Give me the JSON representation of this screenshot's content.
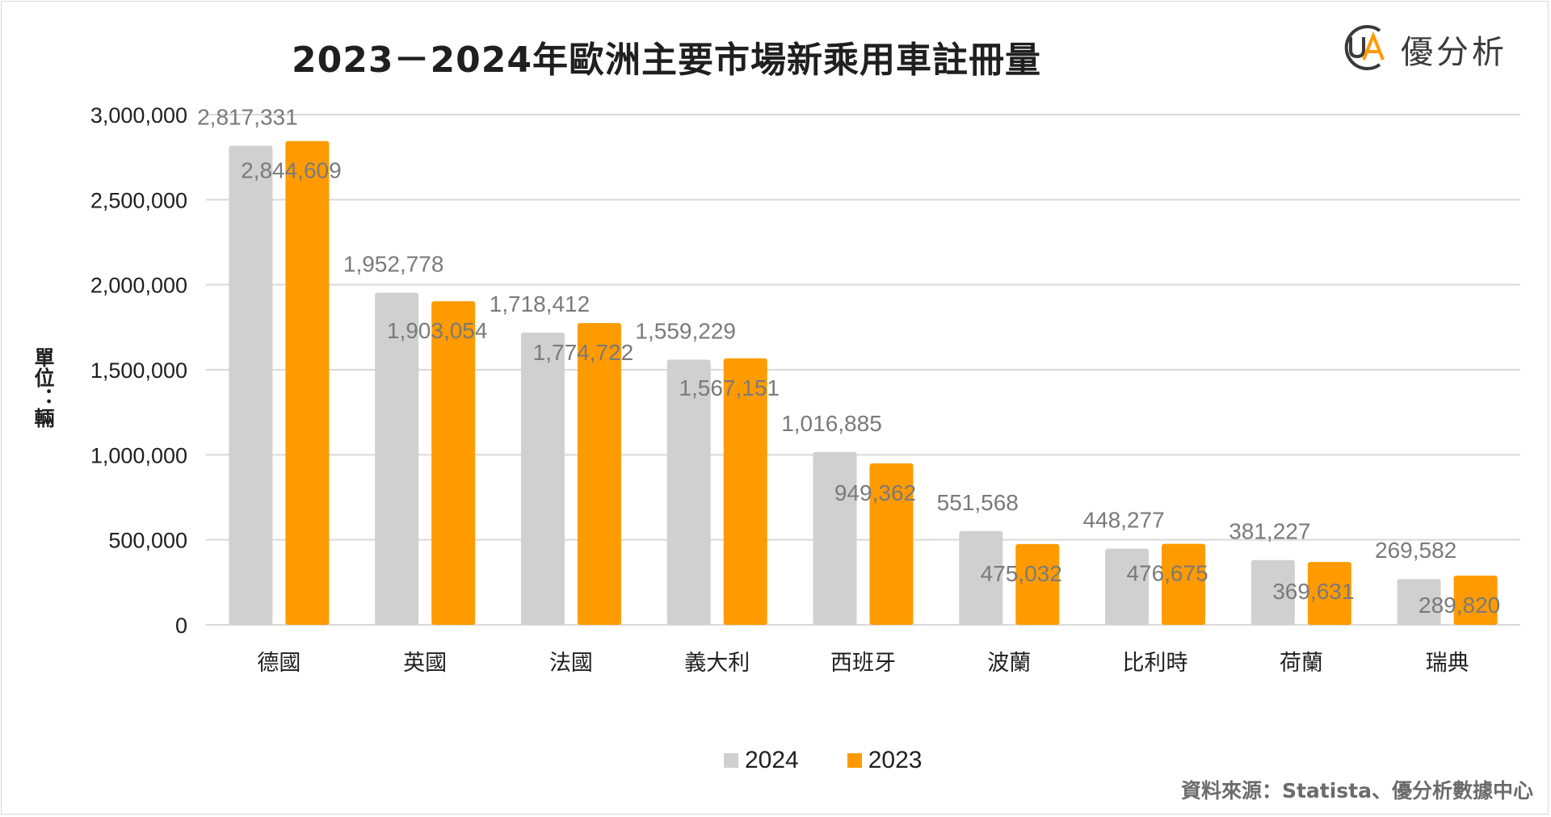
{
  "logo": {
    "text": "優分析",
    "mark": "UA"
  },
  "source": "資料來源：Statista、優分析數據中心",
  "colors": {
    "series_2024": "#d0d0d0",
    "series_2023": "#ff9b00",
    "grid": "#d9d9d9"
  },
  "chart_data": {
    "type": "bar",
    "title": "2023－2024年歐洲主要市場新乘用車註冊量",
    "ylabel": "單位：輛",
    "xlabel": "",
    "categories": [
      "德國",
      "英國",
      "法國",
      "義大利",
      "西班牙",
      "波蘭",
      "比利時",
      "荷蘭",
      "瑞典"
    ],
    "series": [
      {
        "name": "2024",
        "values": [
          2817331,
          1952778,
          1718412,
          1559229,
          1016885,
          551568,
          448277,
          381227,
          269582
        ],
        "labels": [
          "2,817,331",
          "1,952,778",
          "1,718,412",
          "1,559,229",
          "1,016,885",
          "551,568",
          "448,277",
          "381,227",
          "269,582"
        ]
      },
      {
        "name": "2023",
        "values": [
          2844609,
          1903054,
          1774722,
          1567151,
          949362,
          475032,
          476675,
          369631,
          289820
        ],
        "labels": [
          "2,844,609",
          "1,903,054",
          "1,774,722",
          "1,567,151",
          "949,362",
          "475,032",
          "476,675",
          "369,631",
          "289,820"
        ]
      }
    ],
    "ylim": [
      0,
      3000000
    ],
    "yticks": [
      0,
      500000,
      1000000,
      1500000,
      2000000,
      2500000,
      3000000
    ],
    "ytick_labels": [
      "0",
      "500,000",
      "1,000,000",
      "1,500,000",
      "2,000,000",
      "2,500,000",
      "3,000,000"
    ],
    "grid": true,
    "legend_position": "bottom"
  }
}
